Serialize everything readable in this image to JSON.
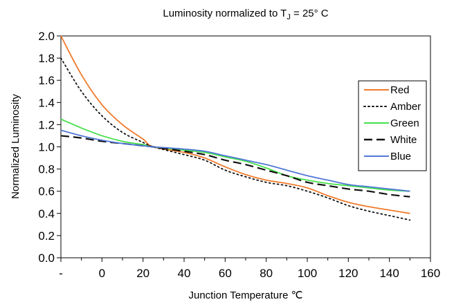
{
  "chart_data": {
    "type": "line",
    "title": {
      "main": "Luminosity normalized to T",
      "sub": "J",
      "tail": " = 25° C"
    },
    "xlabel": "Junction Temperature ℃",
    "ylabel": "Normalized Luminosity",
    "xlim": [
      -20,
      160
    ],
    "ylim": [
      0.0,
      2.0
    ],
    "x_ticks": [
      {
        "value": -20,
        "label": "-"
      },
      {
        "value": 0,
        "label": "0"
      },
      {
        "value": 20,
        "label": "20"
      },
      {
        "value": 40,
        "label": "40"
      },
      {
        "value": 60,
        "label": "60"
      },
      {
        "value": 80,
        "label": "80"
      },
      {
        "value": 100,
        "label": "100"
      },
      {
        "value": 120,
        "label": "120"
      },
      {
        "value": 140,
        "label": "140"
      },
      {
        "value": 160,
        "label": "160"
      }
    ],
    "y_ticks": [
      {
        "value": 0.0,
        "label": "0.0"
      },
      {
        "value": 0.2,
        "label": "0.2"
      },
      {
        "value": 0.4,
        "label": "0.4"
      },
      {
        "value": 0.6,
        "label": "0.6"
      },
      {
        "value": 0.8,
        "label": "0.8"
      },
      {
        "value": 1.0,
        "label": "1.0"
      },
      {
        "value": 1.2,
        "label": "1.2"
      },
      {
        "value": 1.4,
        "label": "1.4"
      },
      {
        "value": 1.6,
        "label": "1.6"
      },
      {
        "value": 1.8,
        "label": "1.8"
      },
      {
        "value": 2.0,
        "label": "2.0"
      }
    ],
    "grid": false,
    "legend_position": "right",
    "series": [
      {
        "name": "Red",
        "color": "#f07a2a",
        "dash": "solid",
        "x": [
          -20,
          -10,
          0,
          10,
          20,
          25,
          40,
          50,
          60,
          70,
          80,
          90,
          100,
          110,
          120,
          130,
          140,
          150
        ],
        "y": [
          2.0,
          1.65,
          1.38,
          1.2,
          1.07,
          1.0,
          0.95,
          0.9,
          0.82,
          0.75,
          0.7,
          0.67,
          0.63,
          0.56,
          0.5,
          0.46,
          0.43,
          0.4
        ]
      },
      {
        "name": "Amber",
        "color": "#111111",
        "dash": "dotted",
        "x": [
          -20,
          -10,
          0,
          10,
          20,
          25,
          40,
          50,
          60,
          70,
          80,
          90,
          100,
          110,
          120,
          130,
          140,
          150
        ],
        "y": [
          1.8,
          1.5,
          1.28,
          1.13,
          1.04,
          1.0,
          0.93,
          0.88,
          0.79,
          0.73,
          0.68,
          0.65,
          0.6,
          0.54,
          0.47,
          0.42,
          0.38,
          0.34
        ]
      },
      {
        "name": "Green",
        "color": "#44e04a",
        "dash": "solid",
        "x": [
          -20,
          -10,
          0,
          10,
          20,
          25,
          40,
          50,
          60,
          70,
          80,
          90,
          100,
          110,
          120,
          130,
          140,
          150
        ],
        "y": [
          1.25,
          1.17,
          1.1,
          1.05,
          1.02,
          1.0,
          0.97,
          0.95,
          0.91,
          0.87,
          0.81,
          0.74,
          0.7,
          0.67,
          0.65,
          0.63,
          0.61,
          0.6
        ]
      },
      {
        "name": "White",
        "color": "#111111",
        "dash": "dashed",
        "x": [
          -20,
          -10,
          0,
          10,
          20,
          25,
          40,
          50,
          60,
          70,
          80,
          90,
          100,
          110,
          120,
          130,
          140,
          150
        ],
        "y": [
          1.1,
          1.08,
          1.05,
          1.03,
          1.01,
          1.0,
          0.96,
          0.93,
          0.88,
          0.84,
          0.79,
          0.74,
          0.68,
          0.65,
          0.62,
          0.6,
          0.57,
          0.55
        ]
      },
      {
        "name": "Blue",
        "color": "#5077d6",
        "dash": "solid",
        "x": [
          -20,
          -10,
          0,
          10,
          20,
          25,
          40,
          50,
          60,
          70,
          80,
          90,
          100,
          110,
          120,
          130,
          140,
          150
        ],
        "y": [
          1.15,
          1.1,
          1.06,
          1.03,
          1.01,
          1.0,
          0.98,
          0.96,
          0.92,
          0.88,
          0.84,
          0.79,
          0.74,
          0.7,
          0.66,
          0.64,
          0.62,
          0.6
        ]
      }
    ]
  }
}
